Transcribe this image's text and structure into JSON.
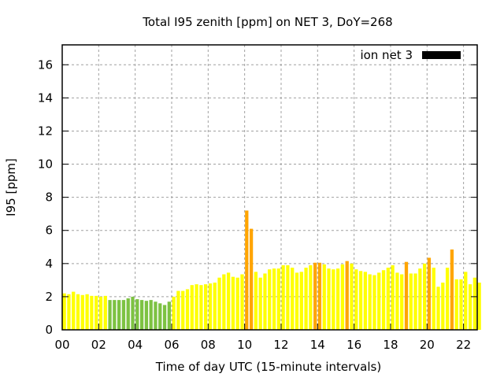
{
  "chart_data": {
    "type": "bar",
    "title": "Total I95 zenith [ppm] on NET 3, DoY=268",
    "xlabel": "Time of day UTC (15-minute intervals)",
    "ylabel": "I95 [ppm]",
    "ylim": [
      0,
      17.2
    ],
    "xlim": [
      0,
      22.75
    ],
    "grid": true,
    "legend": {
      "label": "ion net 3",
      "color": "#000000",
      "placement": "top-right"
    },
    "xticks": [
      "00",
      "02",
      "04",
      "06",
      "08",
      "10",
      "12",
      "14",
      "16",
      "18",
      "20",
      "22"
    ],
    "yticks": [
      "0",
      "2",
      "4",
      "6",
      "8",
      "10",
      "12",
      "14",
      "16"
    ],
    "interval_hours": 0.25,
    "colors": {
      "low": "#7dc242",
      "medium": "#ffff00",
      "high": "#ffa500"
    },
    "values": [
      2.2,
      2.15,
      2.3,
      2.15,
      2.1,
      2.15,
      2.05,
      2.05,
      2.0,
      2.05,
      1.8,
      1.8,
      1.8,
      1.8,
      1.9,
      2.0,
      1.85,
      1.8,
      1.75,
      1.8,
      1.7,
      1.6,
      1.5,
      1.7,
      2.0,
      2.35,
      2.35,
      2.45,
      2.7,
      2.75,
      2.7,
      2.75,
      2.8,
      2.85,
      3.15,
      3.35,
      3.45,
      3.2,
      3.15,
      3.35,
      7.2,
      6.1,
      3.5,
      3.15,
      3.4,
      3.65,
      3.7,
      3.7,
      3.9,
      3.9,
      3.75,
      3.45,
      3.5,
      3.75,
      3.9,
      4.05,
      4.05,
      3.95,
      3.7,
      3.65,
      3.7,
      3.95,
      4.15,
      4.0,
      3.65,
      3.55,
      3.5,
      3.35,
      3.3,
      3.45,
      3.6,
      3.75,
      3.9,
      3.45,
      3.35,
      4.1,
      3.4,
      3.4,
      3.7,
      4.0,
      4.35,
      3.75,
      2.6,
      2.85,
      3.75,
      4.85,
      3.05,
      3.05,
      3.5,
      2.75,
      3.15,
      2.85
    ],
    "levels": [
      "medium",
      "medium",
      "medium",
      "medium",
      "medium",
      "medium",
      "medium",
      "medium",
      "medium",
      "medium",
      "low",
      "low",
      "low",
      "low",
      "low",
      "low",
      "low",
      "low",
      "low",
      "low",
      "low",
      "low",
      "low",
      "low",
      "medium",
      "medium",
      "medium",
      "medium",
      "medium",
      "medium",
      "medium",
      "medium",
      "medium",
      "medium",
      "medium",
      "medium",
      "medium",
      "medium",
      "medium",
      "medium",
      "high",
      "high",
      "medium",
      "medium",
      "medium",
      "medium",
      "medium",
      "medium",
      "medium",
      "medium",
      "medium",
      "medium",
      "medium",
      "medium",
      "medium",
      "high",
      "high",
      "medium",
      "medium",
      "medium",
      "medium",
      "medium",
      "high",
      "medium",
      "medium",
      "medium",
      "medium",
      "medium",
      "medium",
      "medium",
      "medium",
      "medium",
      "medium",
      "medium",
      "medium",
      "high",
      "medium",
      "medium",
      "medium",
      "medium",
      "high",
      "medium",
      "medium",
      "medium",
      "medium",
      "high",
      "medium",
      "medium",
      "medium",
      "medium",
      "medium",
      "medium"
    ]
  }
}
